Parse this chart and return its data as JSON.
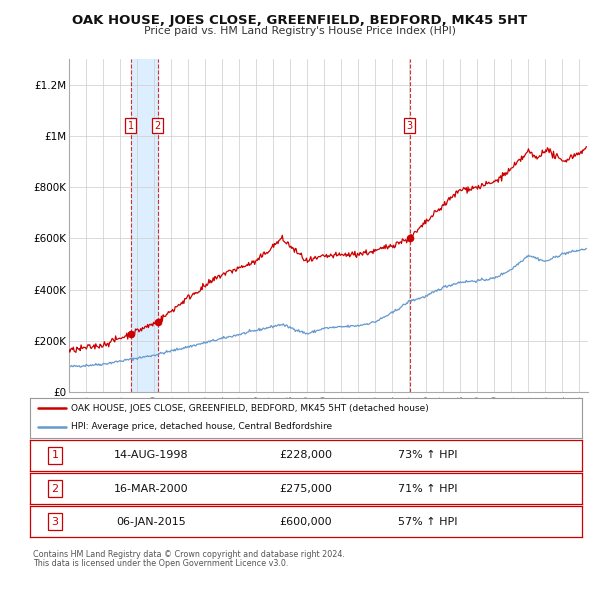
{
  "title": "OAK HOUSE, JOES CLOSE, GREENFIELD, BEDFORD, MK45 5HT",
  "subtitle": "Price paid vs. HM Land Registry's House Price Index (HPI)",
  "legend_line1": "OAK HOUSE, JOES CLOSE, GREENFIELD, BEDFORD, MK45 5HT (detached house)",
  "legend_line2": "HPI: Average price, detached house, Central Bedfordshire",
  "transactions": [
    {
      "num": 1,
      "date": "14-AUG-1998",
      "price": 228000,
      "pct": "73%",
      "year": 1998.62
    },
    {
      "num": 2,
      "date": "16-MAR-2000",
      "price": 275000,
      "pct": "71%",
      "year": 2000.21
    },
    {
      "num": 3,
      "date": "06-JAN-2015",
      "price": 600000,
      "pct": "57%",
      "year": 2015.02
    }
  ],
  "footnote1": "Contains HM Land Registry data © Crown copyright and database right 2024.",
  "footnote2": "This data is licensed under the Open Government Licence v3.0.",
  "ylim": [
    0,
    1300000
  ],
  "xlim_start": 1995.0,
  "xlim_end": 2025.5,
  "red_color": "#cc0000",
  "blue_color": "#6699cc",
  "background_color": "#ffffff",
  "grid_color": "#cccccc",
  "shade_color": "#ddeeff",
  "yticks": [
    0,
    200000,
    400000,
    600000,
    800000,
    1000000,
    1200000
  ],
  "ylabels": [
    "£0",
    "£200K",
    "£400K",
    "£600K",
    "£800K",
    "£1M",
    "£1.2M"
  ]
}
